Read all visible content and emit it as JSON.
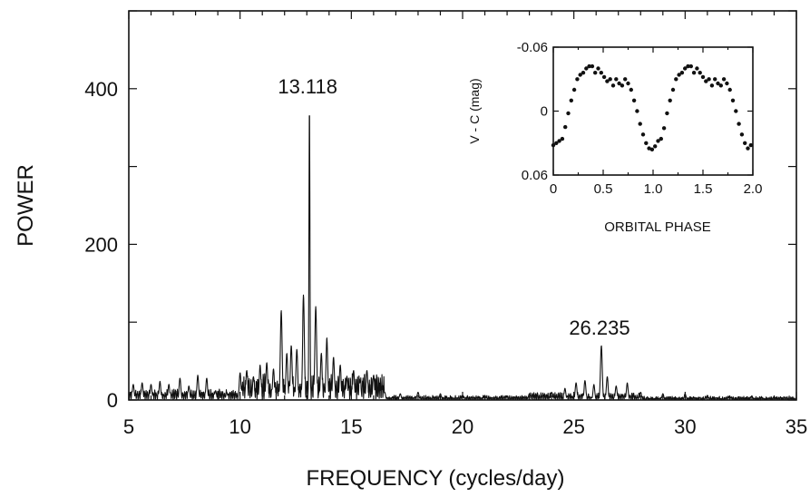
{
  "chart_data": [
    {
      "type": "line",
      "xlabel": "FREQUENCY (cycles/day)",
      "ylabel": "POWER",
      "xlim": [
        5,
        35
      ],
      "ylim": [
        0,
        500
      ],
      "x_ticks": [
        5,
        10,
        15,
        20,
        25,
        30,
        35
      ],
      "y_ticks": [
        0,
        200,
        400
      ],
      "grid": false,
      "annotations": [
        {
          "text": "13.118",
          "x": 13.118,
          "y": 380
        },
        {
          "text": "26.235",
          "x": 26.235,
          "y": 70
        }
      ],
      "peaks": [
        {
          "x": 5.2,
          "y": 20
        },
        {
          "x": 5.6,
          "y": 22
        },
        {
          "x": 6.0,
          "y": 20
        },
        {
          "x": 6.4,
          "y": 24
        },
        {
          "x": 6.8,
          "y": 20
        },
        {
          "x": 7.3,
          "y": 28
        },
        {
          "x": 7.7,
          "y": 18
        },
        {
          "x": 8.1,
          "y": 32
        },
        {
          "x": 8.5,
          "y": 28
        },
        {
          "x": 8.9,
          "y": 12
        },
        {
          "x": 9.4,
          "y": 10
        },
        {
          "x": 10.0,
          "y": 35
        },
        {
          "x": 10.3,
          "y": 38
        },
        {
          "x": 10.6,
          "y": 30
        },
        {
          "x": 10.9,
          "y": 45
        },
        {
          "x": 11.2,
          "y": 48
        },
        {
          "x": 11.5,
          "y": 40
        },
        {
          "x": 11.85,
          "y": 115
        },
        {
          "x": 12.1,
          "y": 60
        },
        {
          "x": 12.3,
          "y": 70
        },
        {
          "x": 12.55,
          "y": 65
        },
        {
          "x": 12.85,
          "y": 135
        },
        {
          "x": 13.118,
          "y": 380
        },
        {
          "x": 13.4,
          "y": 120
        },
        {
          "x": 13.65,
          "y": 60
        },
        {
          "x": 13.9,
          "y": 80
        },
        {
          "x": 14.2,
          "y": 55
        },
        {
          "x": 14.5,
          "y": 45
        },
        {
          "x": 14.8,
          "y": 30
        },
        {
          "x": 15.1,
          "y": 38
        },
        {
          "x": 15.4,
          "y": 25
        },
        {
          "x": 15.7,
          "y": 38
        },
        {
          "x": 16.0,
          "y": 32
        },
        {
          "x": 16.5,
          "y": 10
        },
        {
          "x": 17.2,
          "y": 8
        },
        {
          "x": 18.0,
          "y": 10
        },
        {
          "x": 19.0,
          "y": 8
        },
        {
          "x": 20.0,
          "y": 6
        },
        {
          "x": 21.0,
          "y": 6
        },
        {
          "x": 22.0,
          "y": 5
        },
        {
          "x": 23.0,
          "y": 8
        },
        {
          "x": 24.0,
          "y": 10
        },
        {
          "x": 24.6,
          "y": 15
        },
        {
          "x": 25.1,
          "y": 22
        },
        {
          "x": 25.5,
          "y": 25
        },
        {
          "x": 25.9,
          "y": 20
        },
        {
          "x": 26.235,
          "y": 70
        },
        {
          "x": 26.5,
          "y": 30
        },
        {
          "x": 26.9,
          "y": 18
        },
        {
          "x": 27.4,
          "y": 22
        },
        {
          "x": 28.0,
          "y": 10
        },
        {
          "x": 29.0,
          "y": 8
        },
        {
          "x": 30.0,
          "y": 8
        },
        {
          "x": 31.0,
          "y": 6
        },
        {
          "x": 32.0,
          "y": 5
        },
        {
          "x": 33.0,
          "y": 5
        },
        {
          "x": 34.0,
          "y": 4
        }
      ]
    },
    {
      "type": "scatter",
      "xlabel": "ORBITAL PHASE",
      "ylabel": "V - C (mag)",
      "xlim": [
        0,
        2.0
      ],
      "ylim": [
        0.06,
        -0.06
      ],
      "x_tick_labels": [
        "0",
        "0.5",
        "1.0",
        "1.5",
        "2.0"
      ],
      "y_tick_labels": [
        "-0.06",
        "0",
        "0.06"
      ],
      "y_ticks": [
        -0.06,
        0,
        0.06
      ],
      "x_ticks": [
        0,
        0.5,
        1.0,
        1.5,
        2.0
      ],
      "points": [
        [
          0.0,
          0.032
        ],
        [
          0.03,
          0.03
        ],
        [
          0.06,
          0.028
        ],
        [
          0.09,
          0.026
        ],
        [
          0.12,
          0.015
        ],
        [
          0.15,
          0.002
        ],
        [
          0.18,
          -0.01
        ],
        [
          0.21,
          -0.02
        ],
        [
          0.24,
          -0.03
        ],
        [
          0.27,
          -0.034
        ],
        [
          0.3,
          -0.036
        ],
        [
          0.33,
          -0.04
        ],
        [
          0.36,
          -0.042
        ],
        [
          0.39,
          -0.042
        ],
        [
          0.42,
          -0.036
        ],
        [
          0.45,
          -0.04
        ],
        [
          0.48,
          -0.036
        ],
        [
          0.51,
          -0.032
        ],
        [
          0.54,
          -0.028
        ],
        [
          0.57,
          -0.03
        ],
        [
          0.6,
          -0.024
        ],
        [
          0.63,
          -0.03
        ],
        [
          0.66,
          -0.026
        ],
        [
          0.69,
          -0.024
        ],
        [
          0.72,
          -0.03
        ],
        [
          0.75,
          -0.026
        ],
        [
          0.78,
          -0.02
        ],
        [
          0.81,
          -0.01
        ],
        [
          0.84,
          0.0
        ],
        [
          0.87,
          0.012
        ],
        [
          0.9,
          0.022
        ],
        [
          0.93,
          0.03
        ],
        [
          0.96,
          0.035
        ],
        [
          0.99,
          0.036
        ],
        [
          1.02,
          0.033
        ],
        [
          1.05,
          0.028
        ],
        [
          1.08,
          0.026
        ],
        [
          1.11,
          0.016
        ],
        [
          1.14,
          0.002
        ],
        [
          1.17,
          -0.01
        ],
        [
          1.2,
          -0.02
        ],
        [
          1.23,
          -0.03
        ],
        [
          1.26,
          -0.034
        ],
        [
          1.29,
          -0.036
        ],
        [
          1.32,
          -0.04
        ],
        [
          1.35,
          -0.042
        ],
        [
          1.38,
          -0.042
        ],
        [
          1.41,
          -0.036
        ],
        [
          1.44,
          -0.04
        ],
        [
          1.47,
          -0.036
        ],
        [
          1.5,
          -0.032
        ],
        [
          1.53,
          -0.028
        ],
        [
          1.56,
          -0.03
        ],
        [
          1.59,
          -0.024
        ],
        [
          1.62,
          -0.03
        ],
        [
          1.65,
          -0.026
        ],
        [
          1.68,
          -0.024
        ],
        [
          1.71,
          -0.03
        ],
        [
          1.74,
          -0.026
        ],
        [
          1.77,
          -0.02
        ],
        [
          1.8,
          -0.01
        ],
        [
          1.83,
          0.0
        ],
        [
          1.86,
          0.012
        ],
        [
          1.89,
          0.022
        ],
        [
          1.92,
          0.03
        ],
        [
          1.95,
          0.035
        ],
        [
          1.98,
          0.032
        ]
      ]
    }
  ]
}
